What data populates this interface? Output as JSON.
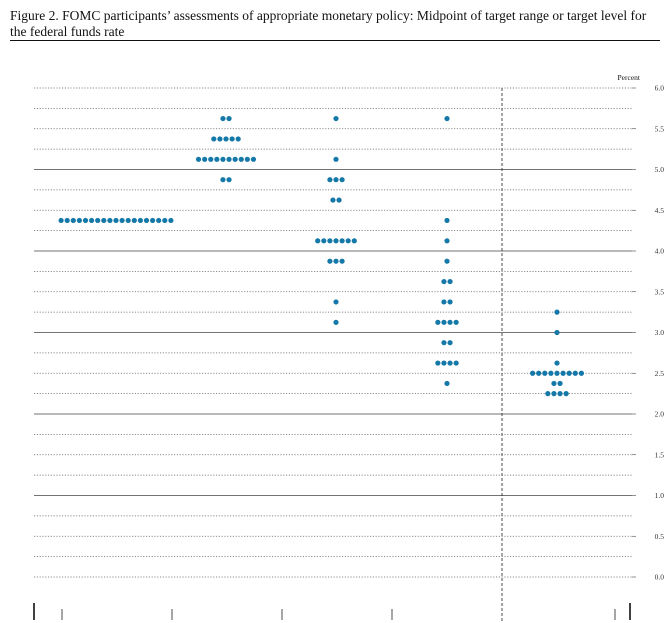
{
  "figure": {
    "title": "Figure 2.  FOMC participants’ assessments of appropriate monetary policy:  Midpoint of target range or target level for the federal funds rate"
  },
  "chart_data": {
    "type": "scatter",
    "title": "Figure 2.  FOMC participants’ assessments of appropriate monetary policy:  Midpoint of target range or target level for the federal funds rate",
    "ylabel": "Percent",
    "xlabel": "",
    "ylim": [
      0,
      6
    ],
    "y_ticks": [
      "0.0",
      "0.5",
      "1.0",
      "1.5",
      "2.0",
      "2.5",
      "3.0",
      "3.5",
      "4.0",
      "4.5",
      "5.0",
      "5.5",
      "6.0"
    ],
    "grid": true,
    "x_tick_labels": [],
    "dot_color": "#1478a8",
    "series": [
      {
        "column": 1,
        "points": [
          {
            "y": 4.375,
            "count": 19
          }
        ]
      },
      {
        "column": 2,
        "points": [
          {
            "y": 5.625,
            "count": 2
          },
          {
            "y": 5.375,
            "count": 5
          },
          {
            "y": 5.125,
            "count": 10
          },
          {
            "y": 4.875,
            "count": 2
          }
        ]
      },
      {
        "column": 3,
        "points": [
          {
            "y": 5.625,
            "count": 1
          },
          {
            "y": 5.125,
            "count": 1
          },
          {
            "y": 4.875,
            "count": 3
          },
          {
            "y": 4.625,
            "count": 2
          },
          {
            "y": 4.125,
            "count": 7
          },
          {
            "y": 3.875,
            "count": 3
          },
          {
            "y": 3.375,
            "count": 1
          },
          {
            "y": 3.125,
            "count": 1
          }
        ]
      },
      {
        "column": 4,
        "points": [
          {
            "y": 5.625,
            "count": 1
          },
          {
            "y": 4.375,
            "count": 1
          },
          {
            "y": 4.125,
            "count": 1
          },
          {
            "y": 3.875,
            "count": 1
          },
          {
            "y": 3.625,
            "count": 2
          },
          {
            "y": 3.375,
            "count": 2
          },
          {
            "y": 3.125,
            "count": 4
          },
          {
            "y": 2.875,
            "count": 2
          },
          {
            "y": 2.625,
            "count": 4
          },
          {
            "y": 2.375,
            "count": 1
          }
        ]
      },
      {
        "column": 5,
        "points": [
          {
            "y": 3.25,
            "count": 1
          },
          {
            "y": 3.0,
            "count": 1
          },
          {
            "y": 2.625,
            "count": 1
          },
          {
            "y": 2.5,
            "count": 9
          },
          {
            "y": 2.375,
            "count": 2
          },
          {
            "y": 2.25,
            "count": 4
          }
        ]
      }
    ]
  }
}
